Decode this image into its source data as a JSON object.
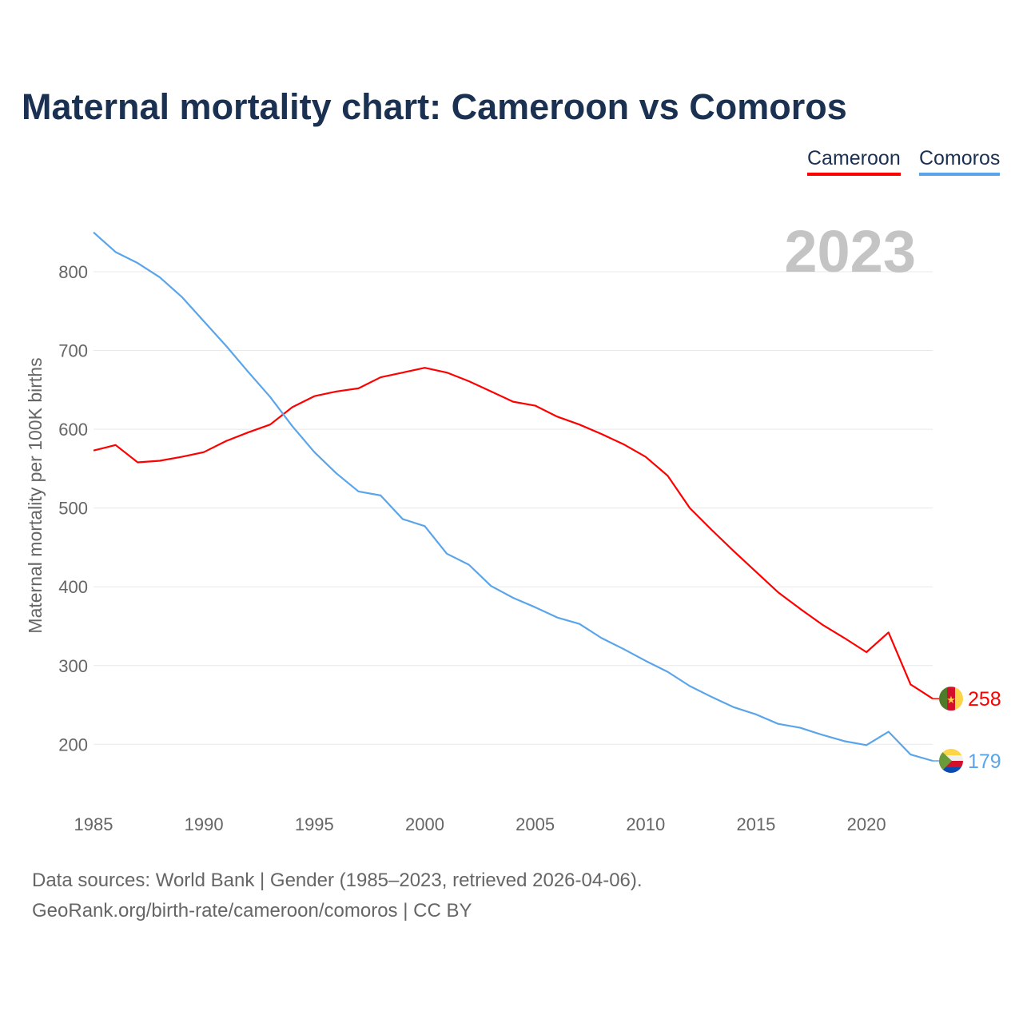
{
  "title": "Maternal mortality chart: Cameroon vs Comoros",
  "legend": [
    {
      "label": "Cameroon",
      "color": "#ff0000"
    },
    {
      "label": "Comoros",
      "color": "#5aa5ea"
    }
  ],
  "year_label": "2023",
  "footer": {
    "line1": "Data sources: World Bank | Gender (1985–2023, retrieved 2026-04-06).",
    "line2": "GeoRank.org/birth-rate/cameroon/comoros | CC BY"
  },
  "chart_data": {
    "type": "line",
    "title": "Maternal mortality chart: Cameroon vs Comoros",
    "xlabel": "",
    "ylabel": "Maternal mortality per 100K births",
    "xlim": [
      1985,
      2023
    ],
    "ylim": [
      150,
      850
    ],
    "grid": true,
    "legend_position": "top-right",
    "x_ticks": [
      1985,
      1990,
      1995,
      2000,
      2005,
      2010,
      2015,
      2020
    ],
    "y_ticks": [
      200,
      300,
      400,
      500,
      600,
      700,
      800
    ],
    "x": [
      1985,
      1986,
      1987,
      1988,
      1989,
      1990,
      1991,
      1992,
      1993,
      1994,
      1995,
      1996,
      1997,
      1998,
      1999,
      2000,
      2001,
      2002,
      2003,
      2004,
      2005,
      2006,
      2007,
      2008,
      2009,
      2010,
      2011,
      2012,
      2013,
      2014,
      2015,
      2016,
      2017,
      2018,
      2019,
      2020,
      2021,
      2022,
      2023
    ],
    "series": [
      {
        "name": "Cameroon",
        "color": "#ff0000",
        "end_label": "258",
        "values": [
          573,
          580,
          558,
          560,
          565,
          571,
          585,
          596,
          606,
          628,
          642,
          648,
          652,
          666,
          672,
          678,
          672,
          661,
          648,
          635,
          630,
          616,
          606,
          594,
          581,
          565,
          541,
          500,
          472,
          445,
          419,
          393,
          372,
          352,
          335,
          317,
          342,
          276,
          258
        ]
      },
      {
        "name": "Comoros",
        "color": "#5aa5ea",
        "end_label": "179",
        "values": [
          850,
          825,
          811,
          793,
          768,
          737,
          706,
          673,
          641,
          604,
          571,
          544,
          521,
          516,
          486,
          477,
          442,
          428,
          401,
          386,
          374,
          361,
          353,
          335,
          321,
          306,
          292,
          274,
          260,
          247,
          238,
          226,
          221,
          212,
          204,
          199,
          216,
          187,
          179
        ]
      }
    ]
  }
}
